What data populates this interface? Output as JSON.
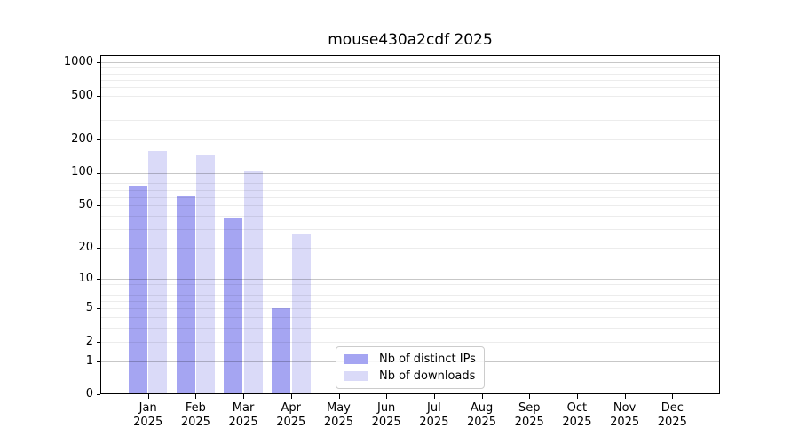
{
  "figure": {
    "background": "#ffffff"
  },
  "chart_data": {
    "type": "bar",
    "title": "mouse430a2cdf 2025",
    "categories": [
      "Jan 2025",
      "Feb 2025",
      "Mar 2025",
      "Apr 2025",
      "May 2025",
      "Jun 2025",
      "Jul 2025",
      "Aug 2025",
      "Sep 2025",
      "Oct 2025",
      "Nov 2025",
      "Dec 2025"
    ],
    "series": [
      {
        "name": "Nb of distinct IPs",
        "color": "#a5a5f2",
        "values": [
          76,
          61,
          39,
          5,
          0,
          0,
          0,
          0,
          0,
          0,
          0,
          0
        ]
      },
      {
        "name": "Nb of downloads",
        "color": "#dadaf8",
        "values": [
          158,
          143,
          102,
          27,
          0,
          0,
          0,
          0,
          0,
          0,
          0,
          0
        ]
      }
    ],
    "xlabel": "",
    "ylabel": "",
    "yscale": "log1p",
    "yticks": [
      0,
      1,
      2,
      5,
      10,
      20,
      50,
      100,
      200,
      500,
      1000
    ],
    "ylim": [
      0,
      1170
    ],
    "grid": "horizontal",
    "legend_position": "bottom-center",
    "colors": {
      "axis": "#000000",
      "major_grid": "#c8c8c8",
      "minor_grid": "#ececec",
      "legend_border": "#cccccc"
    }
  }
}
